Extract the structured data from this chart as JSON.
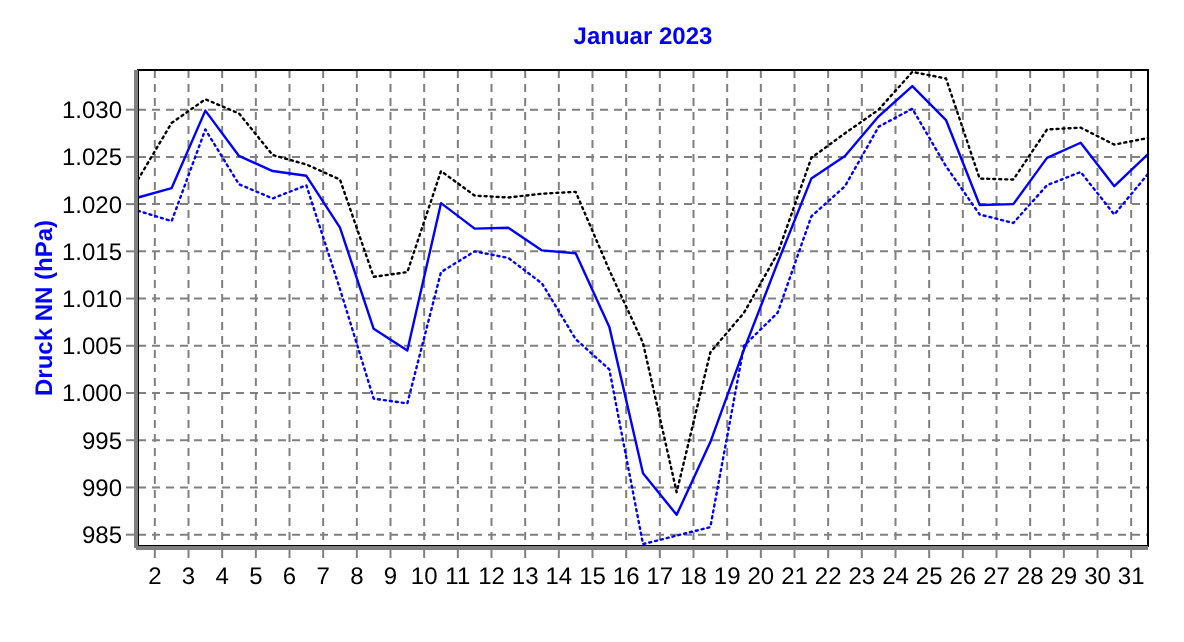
{
  "chart_data": {
    "type": "line",
    "title": "Januar 2023",
    "ylabel": "Druck NN (hPa)",
    "x": [
      1.5,
      2.5,
      3.5,
      4.5,
      5.5,
      6.5,
      7.5,
      8.5,
      9.5,
      10.5,
      11.5,
      12.5,
      13.5,
      14.5,
      15.5,
      16.5,
      17.5,
      18.5,
      19.5,
      20.5,
      21.5,
      22.5,
      23.5,
      24.5,
      25.5,
      26.5,
      27.5,
      28.5,
      29.5,
      30.5,
      31.5
    ],
    "xlim": [
      1.5,
      31.5
    ],
    "xticks": [
      2,
      3,
      4,
      5,
      6,
      7,
      8,
      9,
      10,
      11,
      12,
      13,
      14,
      15,
      16,
      17,
      18,
      19,
      20,
      21,
      22,
      23,
      24,
      25,
      26,
      27,
      28,
      29,
      30,
      31
    ],
    "ylim": [
      983.8,
      1034.2
    ],
    "yticks": [
      {
        "value": 985,
        "label": "985"
      },
      {
        "value": 990,
        "label": "990"
      },
      {
        "value": 995,
        "label": "995"
      },
      {
        "value": 1000,
        "label": "1.000"
      },
      {
        "value": 1005,
        "label": "1.005"
      },
      {
        "value": 1010,
        "label": "1.010"
      },
      {
        "value": 1015,
        "label": "1.015"
      },
      {
        "value": 1020,
        "label": "1.020"
      },
      {
        "value": 1025,
        "label": "1.025"
      },
      {
        "value": 1030,
        "label": "1.030"
      }
    ],
    "grid": true,
    "marker": "none",
    "series": [
      {
        "color": "#000000",
        "line_style": "dotted",
        "values": [
          1022.6,
          1028.6,
          1031.1,
          1029.6,
          1025.2,
          1024.2,
          1022.6,
          1012.3,
          1012.8,
          1023.5,
          1020.9,
          1020.7,
          1021.1,
          1021.3,
          1013,
          1005.3,
          989.5,
          1004.3,
          1008.5,
          1014.8,
          1024.9,
          1027.5,
          1030,
          1034,
          1033.3,
          1022.7,
          1022.6,
          1027.9,
          1028.1,
          1026.3,
          1027
        ]
      },
      {
        "color": "#0000ff",
        "line_style": "solid",
        "values": [
          1020.7,
          1021.7,
          1029.9,
          1025.1,
          1023.5,
          1023,
          1017.5,
          1006.8,
          1004.5,
          1020.1,
          1017.4,
          1017.5,
          1015.1,
          1014.8,
          1007,
          991.5,
          987.1,
          994.8,
          1004.6,
          1013.8,
          1022.7,
          1025.1,
          1029.3,
          1032.5,
          1028.9,
          1019.9,
          1020,
          1024.9,
          1026.5,
          1021.9,
          1025.3
        ]
      },
      {
        "color": "#0000ff",
        "line_style": "dotted",
        "values": [
          1019.3,
          1018.2,
          1027.9,
          1022.1,
          1020.6,
          1022,
          1011,
          999.4,
          998.9,
          1012.8,
          1015,
          1014.3,
          1011.6,
          1005.7,
          1002.5,
          984,
          984.9,
          985.8,
          1005,
          1008.5,
          1018.7,
          1021.9,
          1028.2,
          1030.1,
          1024,
          1018.9,
          1018,
          1022,
          1023.4,
          1018.9,
          1023.2
        ]
      }
    ]
  }
}
